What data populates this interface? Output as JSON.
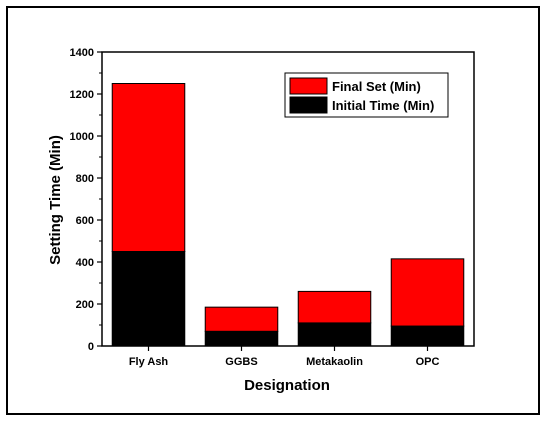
{
  "chart_data": {
    "type": "bar",
    "stacked": true,
    "categories": [
      "Fly Ash",
      "GGBS",
      "Metakaolin",
      "OPC"
    ],
    "series": [
      {
        "name": "Initial Time (Min)",
        "values": [
          450,
          70,
          110,
          95
        ]
      },
      {
        "name": "Final Set (Min)",
        "values": [
          800,
          115,
          150,
          320
        ]
      }
    ],
    "xlabel": "Designation",
    "ylabel": "Setting Time (Min)",
    "ylim": [
      0,
      1400
    ],
    "yticks": [
      0,
      200,
      400,
      600,
      800,
      1000,
      1200,
      1400
    ],
    "grid": false,
    "legend_position": "top-right",
    "colors": {
      "Initial Time (Min)": "#000000",
      "Final Set (Min)": "#ff0000"
    }
  }
}
